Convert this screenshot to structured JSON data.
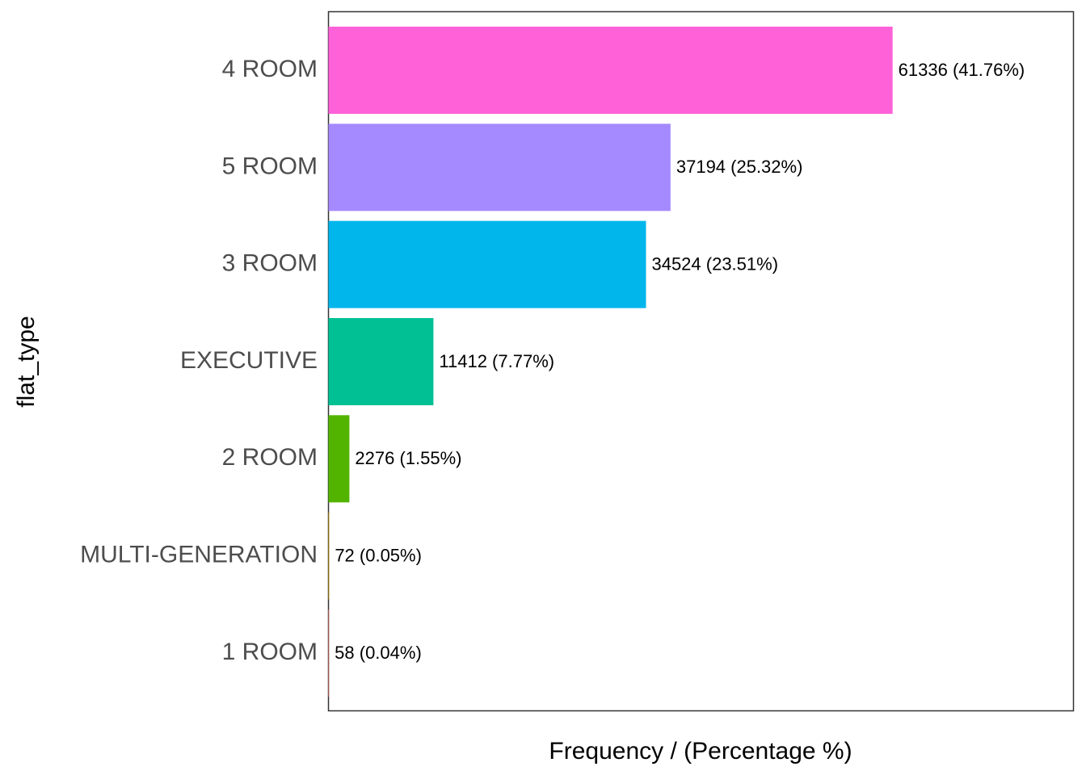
{
  "chart_data": {
    "type": "bar",
    "orientation": "horizontal",
    "xlabel": "Frequency / (Percentage %)",
    "ylabel": "flat_type",
    "xlim": [
      0,
      81000
    ],
    "grid": false,
    "legend": "none",
    "categories": [
      "4 ROOM",
      "5 ROOM",
      "3 ROOM",
      "EXECUTIVE",
      "2 ROOM",
      "MULTI-GENERATION",
      "1 ROOM"
    ],
    "values": [
      61336,
      37194,
      34524,
      11412,
      2276,
      72,
      58
    ],
    "percentages": [
      41.76,
      25.32,
      23.51,
      7.77,
      1.55,
      0.05,
      0.04
    ],
    "data_labels": [
      "61336 (41.76%)",
      "37194 (25.32%)",
      "34524 (23.51%)",
      "11412 (7.77%)",
      "2276 (1.55%)",
      "72 (0.05%)",
      "58 (0.04%)"
    ],
    "colors": [
      "#FF61D9",
      "#A58AFF",
      "#00B6EB",
      "#00C094",
      "#53B400",
      "#C49A00",
      "#F8766D"
    ]
  }
}
